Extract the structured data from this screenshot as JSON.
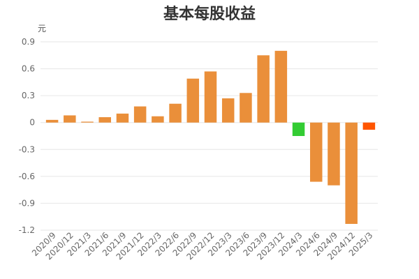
{
  "chart_data": {
    "type": "bar",
    "title": "基本每股收益",
    "ylabel": "元",
    "xlabel": "",
    "ylim": [
      -1.2,
      0.9
    ],
    "yticks": [
      0.9,
      0.6,
      0.3,
      0,
      -0.3,
      -0.6,
      -0.9,
      -1.2
    ],
    "ytick_labels": [
      "0.9",
      "0.6",
      "0.3",
      "0",
      "-0.3",
      "-0.6",
      "-0.9",
      "-1.2"
    ],
    "grid": true,
    "legend": "none",
    "categories": [
      "2020/9",
      "2020/12",
      "2021/3",
      "2021/6",
      "2021/9",
      "2021/12",
      "2022/3",
      "2022/6",
      "2022/9",
      "2022/12",
      "2023/3",
      "2023/6",
      "2023/9",
      "2023/12",
      "2024/3",
      "2024/6",
      "2024/9",
      "2024/12",
      "2025/3"
    ],
    "values": [
      0.03,
      0.08,
      0.01,
      0.06,
      0.1,
      0.18,
      0.07,
      0.21,
      0.49,
      0.57,
      0.27,
      0.33,
      0.75,
      0.8,
      -0.15,
      -0.66,
      -0.7,
      -1.13,
      -0.08
    ],
    "colors": [
      "#ea8f3a",
      "#ea8f3a",
      "#ea8f3a",
      "#ea8f3a",
      "#ea8f3a",
      "#ea8f3a",
      "#ea8f3a",
      "#ea8f3a",
      "#ea8f3a",
      "#ea8f3a",
      "#ea8f3a",
      "#ea8f3a",
      "#ea8f3a",
      "#ea8f3a",
      "#33cc33",
      "#ea8f3a",
      "#ea8f3a",
      "#ea8f3a",
      "#ff5500"
    ]
  }
}
